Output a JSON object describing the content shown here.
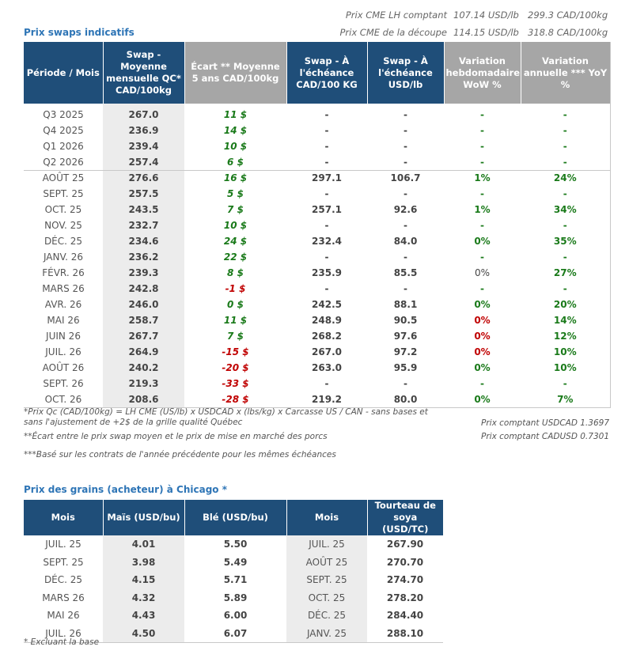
{
  "cme": {
    "lh_label": "Prix CME LH comptant",
    "lh_usd": "107.14 USD/lb",
    "lh_cad": "299.3 CAD/100kg",
    "cut_label": "Prix CME de la découpe",
    "cut_usd": "114.15 USD/lb",
    "cut_cad": "318.8 CAD/100kg"
  },
  "swaps": {
    "title": "Prix swaps indicatifs",
    "headers": [
      "Période / Mois",
      "Swap - Moyenne mensuelle QC* CAD/100kg",
      "Écart ** Moyenne 5 ans CAD/100kg",
      "Swap - À l'échéance CAD/100 KG",
      "Swap - À l'échéance USD/lb",
      "Variation hebdomadaire WoW %",
      "Variation annuelle *** YoY %"
    ],
    "rows": [
      {
        "period": "Q3 2025",
        "swap": "267.0",
        "ecart": "11 $",
        "ecart_sign": "pos",
        "ech_cad": "-",
        "ech_usd": "-",
        "wow": "-",
        "wow_color": "green",
        "yoy": "-",
        "yoy_color": "green"
      },
      {
        "period": "Q4 2025",
        "swap": "236.9",
        "ecart": "14 $",
        "ecart_sign": "pos",
        "ech_cad": "-",
        "ech_usd": "-",
        "wow": "-",
        "wow_color": "green",
        "yoy": "-",
        "yoy_color": "green"
      },
      {
        "period": "Q1 2026",
        "swap": "239.4",
        "ecart": "10 $",
        "ecart_sign": "pos",
        "ech_cad": "-",
        "ech_usd": "-",
        "wow": "-",
        "wow_color": "green",
        "yoy": "-",
        "yoy_color": "green"
      },
      {
        "period": "Q2 2026",
        "swap": "257.4",
        "ecart": "6 $",
        "ecart_sign": "pos",
        "ech_cad": "-",
        "ech_usd": "-",
        "wow": "-",
        "wow_color": "green",
        "yoy": "-",
        "yoy_color": "green"
      },
      {
        "period": "AOÛT 25",
        "swap": "276.6",
        "ecart": "16 $",
        "ecart_sign": "pos",
        "ech_cad": "297.1",
        "ech_usd": "106.7",
        "wow": "1%",
        "wow_color": "green",
        "yoy": "24%",
        "yoy_color": "green",
        "split": true
      },
      {
        "period": "SEPT. 25",
        "swap": "257.5",
        "ecart": "5 $",
        "ecart_sign": "pos",
        "ech_cad": "-",
        "ech_usd": "-",
        "wow": "-",
        "wow_color": "green",
        "yoy": "-",
        "yoy_color": "green"
      },
      {
        "period": "OCT. 25",
        "swap": "243.5",
        "ecart": "7 $",
        "ecart_sign": "pos",
        "ech_cad": "257.1",
        "ech_usd": "92.6",
        "wow": "1%",
        "wow_color": "green",
        "yoy": "34%",
        "yoy_color": "green"
      },
      {
        "period": "NOV. 25",
        "swap": "232.7",
        "ecart": "10 $",
        "ecart_sign": "pos",
        "ech_cad": "-",
        "ech_usd": "-",
        "wow": "-",
        "wow_color": "green",
        "yoy": "-",
        "yoy_color": "green"
      },
      {
        "period": "DÉC. 25",
        "swap": "234.6",
        "ecart": "24 $",
        "ecart_sign": "pos",
        "ech_cad": "232.4",
        "ech_usd": "84.0",
        "wow": "0%",
        "wow_color": "green",
        "yoy": "35%",
        "yoy_color": "green"
      },
      {
        "period": "JANV. 26",
        "swap": "236.2",
        "ecart": "22 $",
        "ecart_sign": "pos",
        "ech_cad": "-",
        "ech_usd": "-",
        "wow": "-",
        "wow_color": "green",
        "yoy": "-",
        "yoy_color": "green"
      },
      {
        "period": "FÉVR. 26",
        "swap": "239.3",
        "ecart": "8 $",
        "ecart_sign": "pos",
        "ech_cad": "235.9",
        "ech_usd": "85.5",
        "wow": "0%",
        "wow_color": "dark",
        "yoy": "27%",
        "yoy_color": "green"
      },
      {
        "period": "MARS 26",
        "swap": "242.8",
        "ecart": "-1 $",
        "ecart_sign": "neg",
        "ech_cad": "-",
        "ech_usd": "-",
        "wow": "-",
        "wow_color": "green",
        "yoy": "-",
        "yoy_color": "green"
      },
      {
        "period": "AVR. 26",
        "swap": "246.0",
        "ecart": "0 $",
        "ecart_sign": "pos",
        "ech_cad": "242.5",
        "ech_usd": "88.1",
        "wow": "0%",
        "wow_color": "green",
        "yoy": "20%",
        "yoy_color": "green"
      },
      {
        "period": "MAI 26",
        "swap": "258.7",
        "ecart": "11 $",
        "ecart_sign": "pos",
        "ech_cad": "248.9",
        "ech_usd": "90.5",
        "wow": "0%",
        "wow_color": "red",
        "yoy": "14%",
        "yoy_color": "green"
      },
      {
        "period": "JUIN 26",
        "swap": "267.7",
        "ecart": "7 $",
        "ecart_sign": "pos",
        "ech_cad": "268.2",
        "ech_usd": "97.6",
        "wow": "0%",
        "wow_color": "red",
        "yoy": "12%",
        "yoy_color": "green"
      },
      {
        "period": "JUIL. 26",
        "swap": "264.9",
        "ecart": "-15 $",
        "ecart_sign": "neg",
        "ech_cad": "267.0",
        "ech_usd": "97.2",
        "wow": "0%",
        "wow_color": "red",
        "yoy": "10%",
        "yoy_color": "green"
      },
      {
        "period": "AOÛT 26",
        "swap": "240.2",
        "ecart": "-20 $",
        "ecart_sign": "neg",
        "ech_cad": "263.0",
        "ech_usd": "95.9",
        "wow": "0%",
        "wow_color": "green",
        "yoy": "10%",
        "yoy_color": "green"
      },
      {
        "period": "SEPT. 26",
        "swap": "219.3",
        "ecart": "-33 $",
        "ecart_sign": "neg",
        "ech_cad": "-",
        "ech_usd": "-",
        "wow": "-",
        "wow_color": "green",
        "yoy": "-",
        "yoy_color": "green"
      },
      {
        "period": "OCT. 26",
        "swap": "208.6",
        "ecart": "-28 $",
        "ecart_sign": "neg",
        "ech_cad": "219.2",
        "ech_usd": "80.0",
        "wow": "0%",
        "wow_color": "green",
        "yoy": "7%",
        "yoy_color": "green"
      }
    ]
  },
  "notes": {
    "note1_line1": "*Prix Qc (CAD/100kg) = LH CME (US/lb) x USDCAD x (lbs/kg) x Carcasse US / CAN - sans bases et",
    "note1_line2": "sans l'ajustement de +2$ de la grille qualité Québec",
    "note2": "**Écart entre le prix swap moyen et le prix de mise en marché des porcs",
    "note3": "***Basé sur les contrats de l'année précédente pour les mêmes échéances",
    "usdcad": "Prix comptant USDCAD 1.3697",
    "cadusd": "Prix comptant CADUSD 0.7301"
  },
  "grains": {
    "title": "Prix des grains (acheteur) à Chicago *",
    "headers": [
      "Mois",
      "Maïs (USD/bu)",
      "Blé (USD/bu)",
      "Mois",
      "Tourteau de soya (USD/TC)"
    ],
    "rows": [
      {
        "mois1": "JUIL. 25",
        "mais": "4.01",
        "ble": "5.50",
        "mois2": "JUIL. 25",
        "soya": "267.90"
      },
      {
        "mois1": "SEPT. 25",
        "mais": "3.98",
        "ble": "5.49",
        "mois2": "AOÛT 25",
        "soya": "270.70"
      },
      {
        "mois1": "DÉC. 25",
        "mais": "4.15",
        "ble": "5.71",
        "mois2": "SEPT. 25",
        "soya": "274.70"
      },
      {
        "mois1": "MARS 26",
        "mais": "4.32",
        "ble": "5.89",
        "mois2": "OCT. 25",
        "soya": "278.20"
      },
      {
        "mois1": "MAI 26",
        "mais": "4.43",
        "ble": "6.00",
        "mois2": "DÉC. 25",
        "soya": "284.40"
      },
      {
        "mois1": "JUIL. 26",
        "mais": "4.50",
        "ble": "6.07",
        "mois2": "JANV. 25",
        "soya": "288.10"
      }
    ],
    "footnote": "* Excluant la base"
  }
}
